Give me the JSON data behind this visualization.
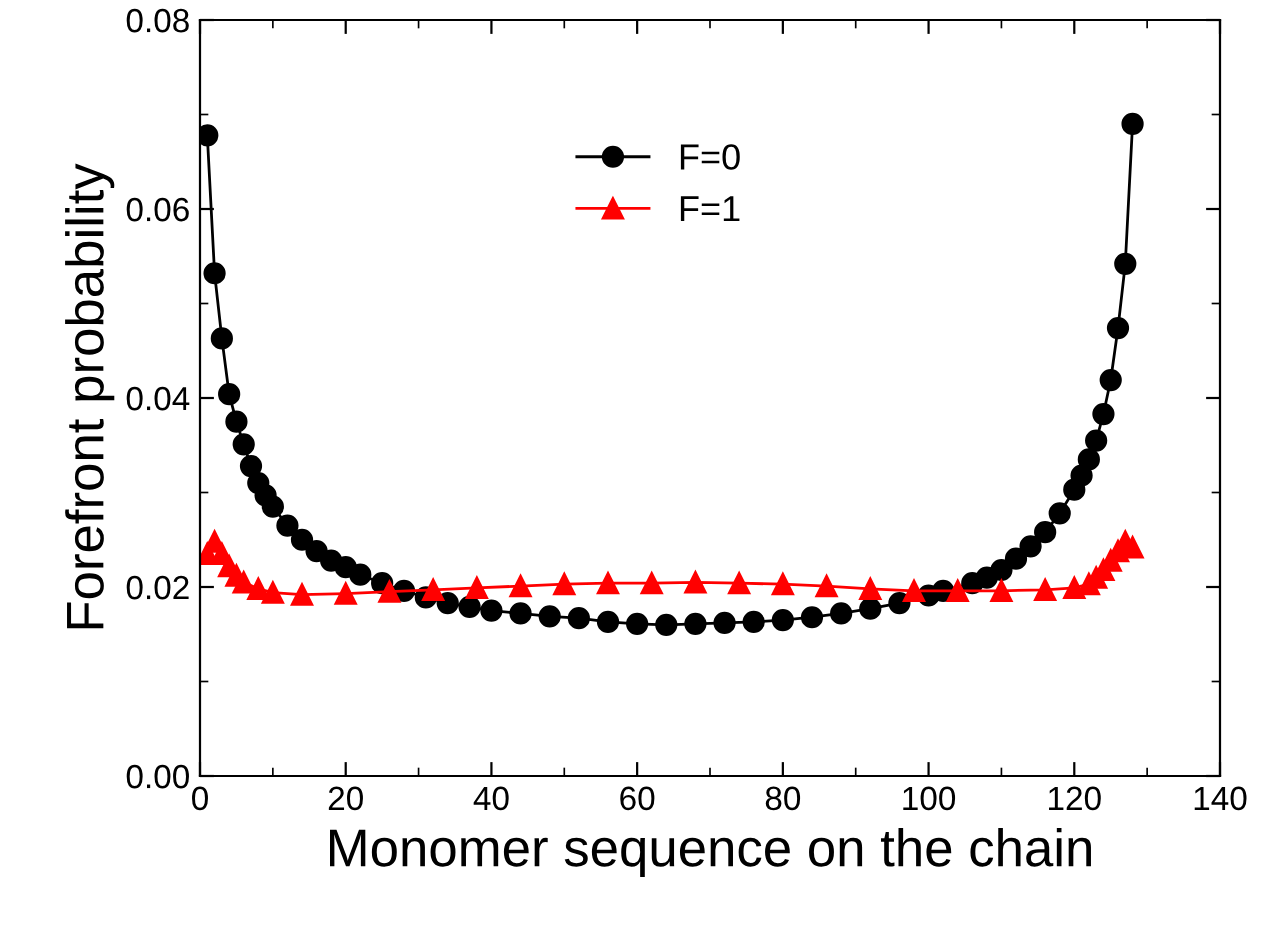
{
  "chart_data": {
    "type": "line",
    "xlabel": "Monomer sequence on the chain",
    "ylabel": "Forefront probability",
    "xlim": [
      0,
      140
    ],
    "xticks": [
      0,
      20,
      40,
      60,
      80,
      100,
      120,
      140
    ],
    "ylim": [
      0,
      0.08
    ],
    "yticks": [
      {
        "value": 0,
        "label": "0.00"
      },
      {
        "value": 0.02,
        "label": "0.02"
      },
      {
        "value": 0.04,
        "label": "0.04"
      },
      {
        "value": 0.06,
        "label": "0.06"
      },
      {
        "value": 0.08,
        "label": "0.08"
      }
    ],
    "legend": "top",
    "grid": false,
    "line_style": "solid",
    "series": [
      {
        "name": "F=0",
        "color": "#000000",
        "marker": "circle",
        "x": [
          1,
          2,
          3,
          4,
          5,
          6,
          7,
          8,
          9,
          10,
          12,
          14,
          16,
          18,
          20,
          22,
          25,
          28,
          31,
          34,
          37,
          40,
          44,
          48,
          52,
          56,
          60,
          64,
          68,
          72,
          76,
          80,
          84,
          88,
          92,
          96,
          100,
          102,
          106,
          108,
          110,
          112,
          114,
          116,
          118,
          120,
          121,
          122,
          123,
          124,
          125,
          126,
          127,
          128
        ],
        "values": [
          0.0678,
          0.0532,
          0.0463,
          0.0404,
          0.0375,
          0.0351,
          0.0328,
          0.031,
          0.0297,
          0.0285,
          0.0265,
          0.025,
          0.0238,
          0.0228,
          0.0221,
          0.0213,
          0.0204,
          0.0196,
          0.0189,
          0.0183,
          0.0179,
          0.0175,
          0.0172,
          0.0169,
          0.0167,
          0.0163,
          0.0161,
          0.016,
          0.0161,
          0.0162,
          0.0163,
          0.0165,
          0.0168,
          0.0172,
          0.0177,
          0.0183,
          0.0191,
          0.0196,
          0.0204,
          0.021,
          0.0218,
          0.023,
          0.0243,
          0.0258,
          0.0278,
          0.0303,
          0.0318,
          0.0335,
          0.0355,
          0.0383,
          0.0419,
          0.0474,
          0.0542,
          0.069
        ]
      },
      {
        "name": "F=1",
        "color": "#ff0000",
        "marker": "triangle",
        "x": [
          1,
          2,
          3,
          4,
          5,
          6,
          8,
          10,
          14,
          20,
          26,
          32,
          38,
          44,
          50,
          56,
          62,
          68,
          74,
          80,
          86,
          92,
          98,
          104,
          110,
          116,
          120,
          122,
          123,
          124,
          125,
          126,
          127,
          128
        ],
        "values": [
          0.0235,
          0.0248,
          0.0235,
          0.0222,
          0.0212,
          0.0205,
          0.0198,
          0.0194,
          0.0192,
          0.0193,
          0.0195,
          0.0197,
          0.0199,
          0.0201,
          0.0203,
          0.0204,
          0.0204,
          0.0205,
          0.0204,
          0.0203,
          0.0201,
          0.0198,
          0.0196,
          0.0196,
          0.0196,
          0.0197,
          0.0199,
          0.0203,
          0.021,
          0.0218,
          0.0228,
          0.0238,
          0.0248,
          0.0242
        ]
      }
    ]
  }
}
